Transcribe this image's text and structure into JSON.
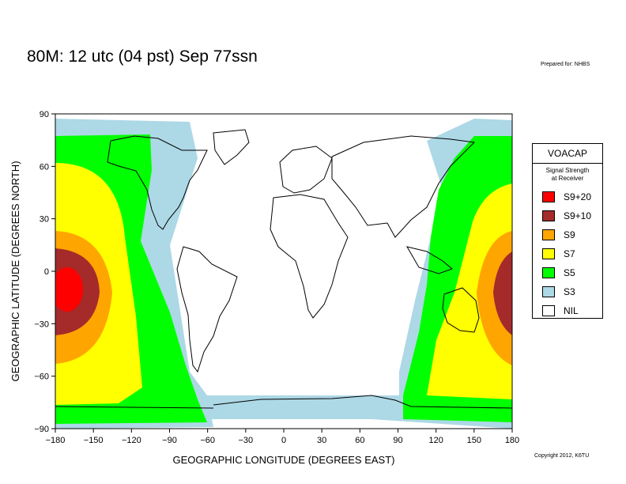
{
  "header": {
    "title": "80M:  12 utc (04 pst) Sep 77ssn",
    "prepared_for": "Prepared for: NHBS"
  },
  "footer": {
    "copyright": "Copyright 2012, K6TU"
  },
  "map": {
    "x_axis": {
      "label": "GEOGRAPHIC LONGITUDE (DEGREES EAST)",
      "range": [
        -180,
        180
      ],
      "ticks": [
        "−180",
        "−150",
        "−120",
        "−90",
        "−60",
        "−30",
        "0",
        "30",
        "60",
        "90",
        "120",
        "150",
        "180"
      ]
    },
    "y_axis": {
      "label": "GEOGRAPHIC LATITUDE (DEGREES NORTH)",
      "range": [
        -90,
        90
      ],
      "ticks": [
        "90",
        "60",
        "30",
        "0",
        "−30",
        "−60",
        "−90"
      ]
    },
    "transmitter_lon": -172,
    "transmitter_lat": -10
  },
  "legend": {
    "title": "VOACAP",
    "subtitle_line1": "Signal Strength",
    "subtitle_line2": "at Receiver",
    "items": [
      {
        "label": "S9+20",
        "color": "#ff0000"
      },
      {
        "label": "S9+10",
        "color": "#a52a2a"
      },
      {
        "label": "S9",
        "color": "#ffa500"
      },
      {
        "label": "S7",
        "color": "#ffff00"
      },
      {
        "label": "S5",
        "color": "#00ff00"
      },
      {
        "label": "S3",
        "color": "#add8e6"
      },
      {
        "label": "NIL",
        "color": "#ffffff"
      }
    ]
  }
}
